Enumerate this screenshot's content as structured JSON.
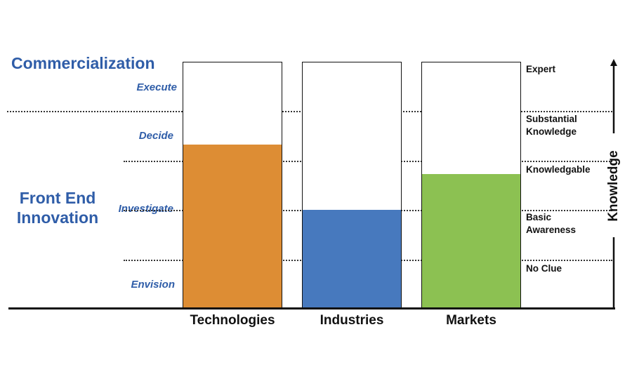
{
  "phases": {
    "commercialization": "Commercialization",
    "front_end": [
      "Front End",
      "Innovation"
    ]
  },
  "stages": [
    "Execute",
    "Decide",
    "Investigate",
    "Envision"
  ],
  "knowledge_levels": {
    "expert": "Expert",
    "substantial": [
      "Substantial",
      "Knowledge"
    ],
    "knowledgable": "Knowledgable",
    "basic": [
      "Basic",
      "Awareness"
    ],
    "no_clue": "No Clue"
  },
  "axis_label": "Knowledge",
  "columns": [
    {
      "label": "Technologies",
      "level": 0.665,
      "color": "#dd8d34"
    },
    {
      "label": "Industries",
      "level": 0.4,
      "color": "#4779be"
    },
    {
      "label": "Markets",
      "level": 0.545,
      "color": "#8cc152"
    }
  ]
}
